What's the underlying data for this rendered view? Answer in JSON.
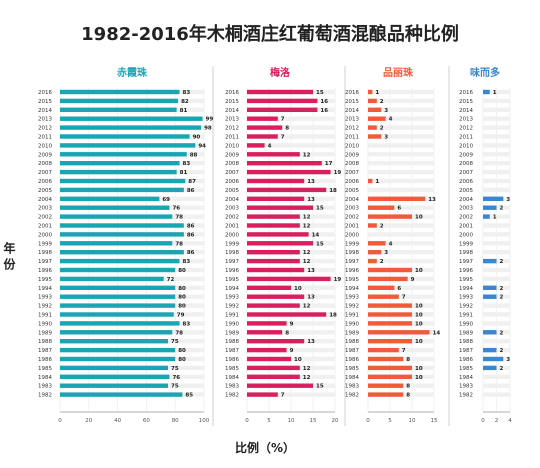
{
  "chart_data": {
    "type": "bar",
    "title": "1982-2016年木桐酒庄红葡萄酒混酿品种比例",
    "ylabel": "年份",
    "xlabel": "比例（%）",
    "years": [
      "2016",
      "2015",
      "2014",
      "2013",
      "2012",
      "2011",
      "2010",
      "2009",
      "2008",
      "2007",
      "2006",
      "2005",
      "2004",
      "2003",
      "2002",
      "2001",
      "2000",
      "1999",
      "1998",
      "1997",
      "1996",
      "1995",
      "1994",
      "1993",
      "1992",
      "1991",
      "1990",
      "1989",
      "1988",
      "1987",
      "1986",
      "1985",
      "1984",
      "1983",
      "1982"
    ],
    "panels": [
      {
        "name": "赤霞珠",
        "color": "#1aa5b3",
        "title_color": "#1aa5b3",
        "xlim": [
          0,
          100
        ],
        "ticks": [
          "0",
          "20",
          "40",
          "60",
          "80",
          "100"
        ],
        "values": [
          83,
          82,
          81,
          99,
          98,
          90,
          94,
          88,
          83,
          81,
          87,
          86,
          69,
          76,
          78,
          86,
          86,
          78,
          86,
          83,
          80,
          72,
          80,
          80,
          80,
          79,
          83,
          78,
          75,
          80,
          80,
          75,
          76,
          75,
          85
        ]
      },
      {
        "name": "梅洛",
        "color": "#d91f5c",
        "title_color": "#d91f5c",
        "xlim": [
          0,
          20
        ],
        "ticks": [
          "0",
          "5",
          "10",
          "15",
          "20"
        ],
        "values": [
          15,
          16,
          16,
          7,
          8,
          7,
          4,
          12,
          17,
          19,
          13,
          18,
          13,
          15,
          12,
          12,
          14,
          15,
          12,
          12,
          13,
          19,
          10,
          13,
          12,
          18,
          9,
          8,
          13,
          9,
          10,
          12,
          12,
          15,
          7
        ]
      },
      {
        "name": "品丽珠",
        "color": "#f25a3c",
        "title_color": "#f25a3c",
        "xlim": [
          0,
          15
        ],
        "ticks": [
          "0",
          "5",
          "10",
          "15"
        ],
        "values": [
          1,
          2,
          3,
          4,
          2,
          3,
          null,
          null,
          null,
          null,
          1,
          null,
          13,
          6,
          10,
          2,
          null,
          4,
          3,
          2,
          10,
          9,
          6,
          7,
          10,
          10,
          10,
          14,
          10,
          7,
          8,
          10,
          10,
          8,
          8
        ]
      },
      {
        "name": "味而多",
        "color": "#3a86cf",
        "title_color": "#3a86cf",
        "xlim": [
          0,
          4
        ],
        "ticks": [
          "0",
          "2",
          "4"
        ],
        "values": [
          1,
          null,
          null,
          null,
          null,
          null,
          null,
          null,
          null,
          null,
          null,
          null,
          3,
          2,
          1,
          null,
          null,
          null,
          null,
          2,
          null,
          null,
          2,
          2,
          null,
          null,
          null,
          2,
          null,
          2,
          3,
          2,
          null,
          null,
          null
        ]
      }
    ]
  }
}
